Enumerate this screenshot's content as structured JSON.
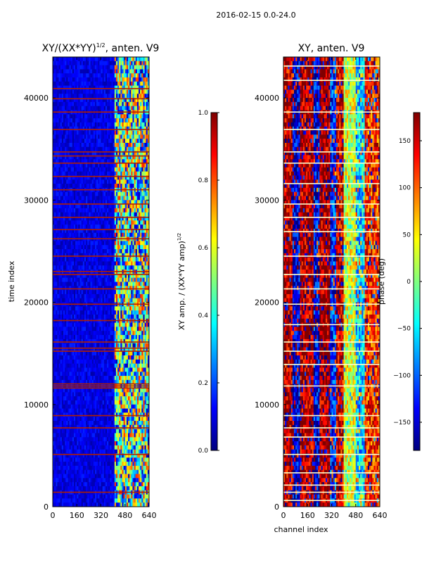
{
  "figure": {
    "suptitle": "2016-02-15 0.0-24.0"
  },
  "colors": {
    "jet_stops": [
      "#00007f",
      "#0000ff",
      "#007fff",
      "#00ffff",
      "#7fff7f",
      "#ffff00",
      "#ff7f00",
      "#ff0000",
      "#7f0000"
    ],
    "background": "#ffffff",
    "axis": "#000000"
  },
  "chart_data": [
    {
      "type": "heatmap",
      "title": "XY/(XX*YY)",
      "title_power": "1/2",
      "title_suffix": ", anten. V9",
      "xlabel": "",
      "ylabel": "time index",
      "xlim": [
        0,
        640
      ],
      "ylim": [
        0,
        44000
      ],
      "xticks": [
        0,
        160,
        320,
        480,
        640
      ],
      "xtick_labels": [
        "0",
        "160",
        "320",
        "480",
        "640"
      ],
      "yticks": [
        0,
        10000,
        20000,
        30000,
        40000
      ],
      "ytick_labels": [
        "0",
        "10000",
        "20000",
        "30000",
        "40000"
      ],
      "value_range": [
        0.0,
        1.0
      ],
      "colorbar": {
        "label": "XY amp. / (XX*YY amp)",
        "label_power": "1/2",
        "range": [
          0.0,
          1.0
        ],
        "ticks": [
          0.0,
          0.2,
          0.4,
          0.6,
          0.8,
          1.0
        ],
        "tick_labels": [
          "0.0",
          "0.2",
          "0.4",
          "0.6",
          "0.8",
          "1.0"
        ]
      },
      "regions": [
        {
          "x_range": [
            0,
            400
          ],
          "description": "low amplitude",
          "typical_value": 0.1
        },
        {
          "x_range": [
            410,
            640
          ],
          "description": "mixed amplitude",
          "typical_value": 0.45
        }
      ],
      "flagged_rows": [
        1400,
        5100,
        7700,
        8900,
        11600,
        11800,
        12000,
        15200,
        15500,
        16100,
        18200,
        19800,
        21300,
        22700,
        23000,
        24500,
        26200,
        27100,
        28300,
        29600,
        31000,
        32300,
        33600,
        34300,
        34700,
        36900,
        38600,
        39900,
        40900
      ]
    },
    {
      "type": "heatmap",
      "title": "XY, anten. V9",
      "xlabel": "channel index",
      "ylabel": "",
      "xlim": [
        0,
        640
      ],
      "ylim": [
        0,
        44000
      ],
      "xticks": [
        0,
        160,
        320,
        480,
        640
      ],
      "xtick_labels": [
        "0",
        "160",
        "320",
        "480",
        "640"
      ],
      "yticks": [
        0,
        10000,
        20000,
        30000,
        40000
      ],
      "ytick_labels": [
        "0",
        "10000",
        "20000",
        "30000",
        "40000"
      ],
      "value_range": [
        -180,
        180
      ],
      "colorbar": {
        "label": "phase (deg)",
        "range": [
          -180,
          180
        ],
        "ticks": [
          -150,
          -100,
          -50,
          0,
          50,
          100,
          150
        ],
        "tick_labels": [
          "−150",
          "−100",
          "−50",
          "0",
          "50",
          "100",
          "150"
        ]
      },
      "bands": [
        {
          "x_range": [
            0,
            60
          ],
          "typical_value": 160
        },
        {
          "x_range": [
            60,
            110
          ],
          "typical_value": -150
        },
        {
          "x_range": [
            110,
            200
          ],
          "typical_value": 165
        },
        {
          "x_range": [
            200,
            240
          ],
          "typical_value": -140
        },
        {
          "x_range": [
            240,
            310
          ],
          "typical_value": 170
        },
        {
          "x_range": [
            310,
            350
          ],
          "typical_value": -120
        },
        {
          "x_range": [
            350,
            400
          ],
          "typical_value": 150
        },
        {
          "x_range": [
            400,
            480
          ],
          "typical_value": 30
        },
        {
          "x_range": [
            480,
            540
          ],
          "typical_value": -60
        },
        {
          "x_range": [
            540,
            640
          ],
          "typical_value": 120
        }
      ],
      "flagged_rows": [
        600,
        1400,
        2100,
        3300,
        5100,
        6800,
        7700,
        8900,
        11800,
        13900,
        15200,
        16100,
        17800,
        19800,
        21300,
        22700,
        24500,
        26900,
        28300,
        29600,
        31600,
        33600,
        34700,
        36900,
        38600,
        41700,
        43100
      ]
    }
  ]
}
